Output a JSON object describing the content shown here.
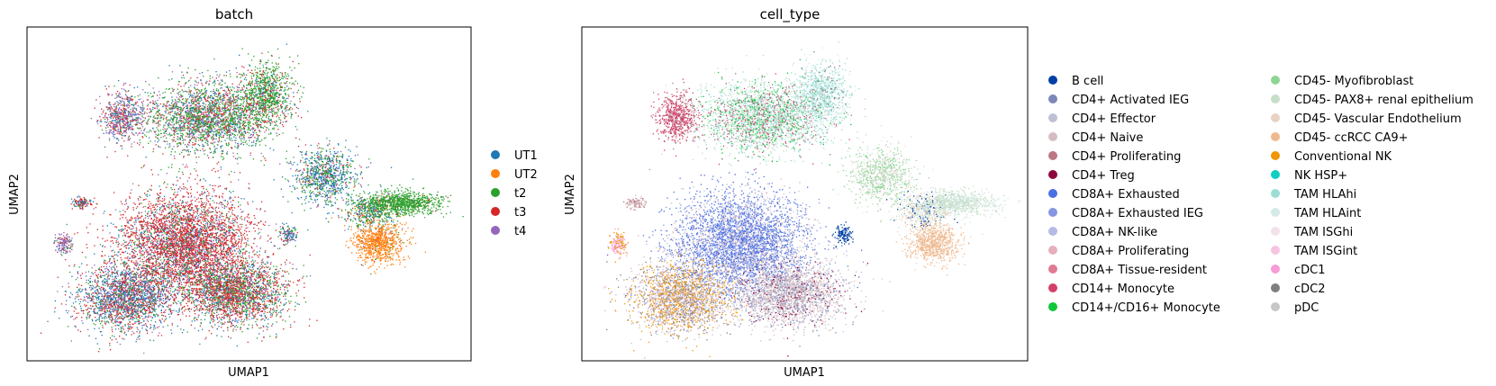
{
  "chart_data": [
    {
      "type": "scatter",
      "title": "batch",
      "xlabel": "UMAP1",
      "ylabel": "UMAP2",
      "ticks": "none",
      "legend_position": "right",
      "categories": [
        {
          "name": "UT1",
          "color": "#1f77b4"
        },
        {
          "name": "UT2",
          "color": "#ff7f0e"
        },
        {
          "name": "t2",
          "color": "#2ca02c"
        },
        {
          "name": "t3",
          "color": "#d62728"
        },
        {
          "name": "t4",
          "color": "#9467bd"
        }
      ]
    },
    {
      "type": "scatter",
      "title": "cell_type",
      "xlabel": "UMAP1",
      "ylabel": "UMAP2",
      "ticks": "none",
      "legend_position": "right",
      "legend_columns": 2,
      "categories": [
        {
          "name": "B cell",
          "color": "#023fa5"
        },
        {
          "name": "CD4+ Activated IEG",
          "color": "#7d87b9"
        },
        {
          "name": "CD4+ Effector",
          "color": "#bec1d4"
        },
        {
          "name": "CD4+ Naive",
          "color": "#d6bcc0"
        },
        {
          "name": "CD4+ Proliferating",
          "color": "#bb7784"
        },
        {
          "name": "CD4+ Treg",
          "color": "#8e063b"
        },
        {
          "name": "CD8A+ Exhausted",
          "color": "#4a6fe3"
        },
        {
          "name": "CD8A+ Exhausted IEG",
          "color": "#8595e1"
        },
        {
          "name": "CD8A+ NK-like",
          "color": "#b5bbe3"
        },
        {
          "name": "CD8A+ Proliferating",
          "color": "#e6afb9"
        },
        {
          "name": "CD8A+ Tissue-resident",
          "color": "#e07b91"
        },
        {
          "name": "CD14+ Monocyte",
          "color": "#d33f6a"
        },
        {
          "name": "CD14+/CD16+ Monocyte",
          "color": "#11c638"
        },
        {
          "name": "CD45- Myofibroblast",
          "color": "#8dd593"
        },
        {
          "name": "CD45- PAX8+ renal epithelium",
          "color": "#c6dec7"
        },
        {
          "name": "CD45- Vascular Endothelium",
          "color": "#ead3c6"
        },
        {
          "name": "CD45- ccRCC CA9+",
          "color": "#f0b98d"
        },
        {
          "name": "Conventional NK",
          "color": "#ef9708"
        },
        {
          "name": "NK HSP+",
          "color": "#0fcfc0"
        },
        {
          "name": "TAM HLAhi",
          "color": "#9cded6"
        },
        {
          "name": "TAM HLAint",
          "color": "#d5eae7"
        },
        {
          "name": "TAM ISGhi",
          "color": "#f3e1eb"
        },
        {
          "name": "TAM ISGint",
          "color": "#f6c4e1"
        },
        {
          "name": "cDC1",
          "color": "#f79cd4"
        },
        {
          "name": "cDC2",
          "color": "#7f7f7f"
        },
        {
          "name": "pDC",
          "color": "#c7c7c7"
        }
      ]
    }
  ]
}
